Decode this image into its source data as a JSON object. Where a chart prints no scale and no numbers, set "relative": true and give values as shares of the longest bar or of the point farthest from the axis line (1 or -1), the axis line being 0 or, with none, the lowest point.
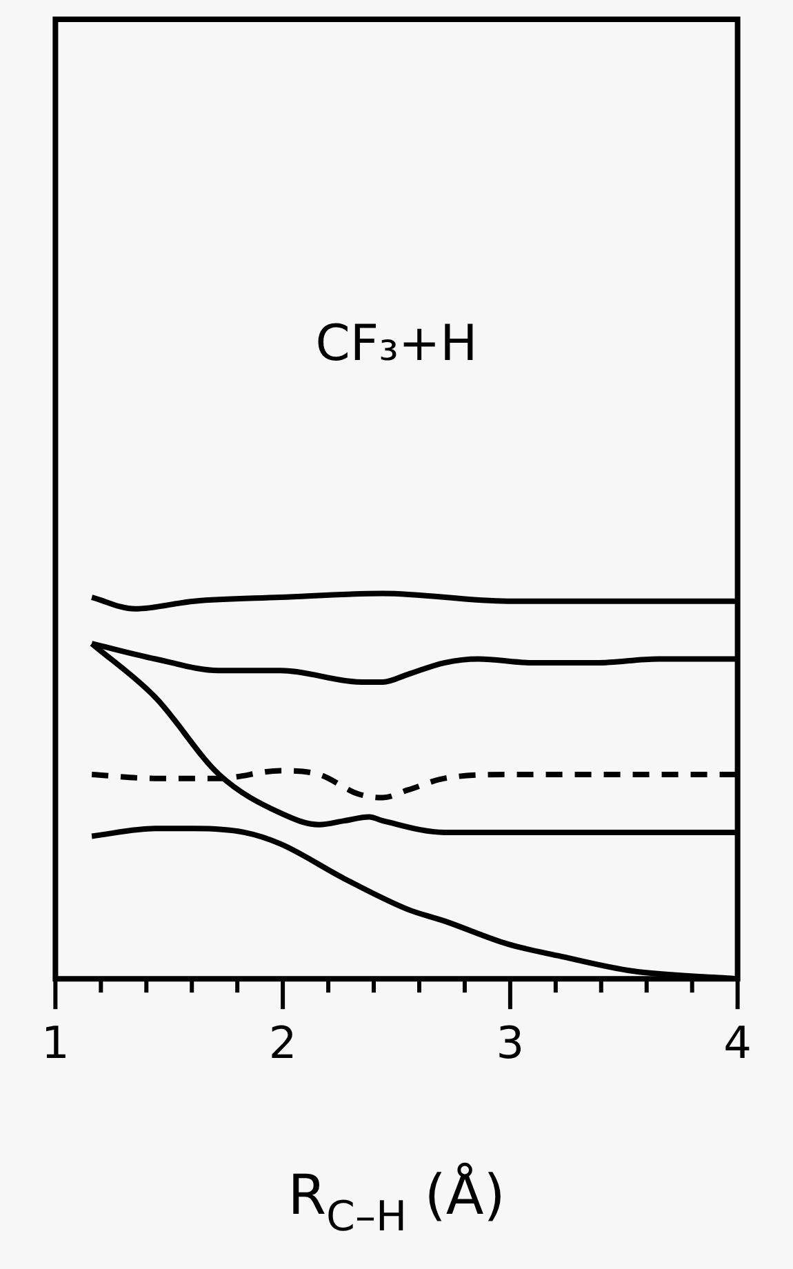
{
  "chart_data": {
    "type": "line",
    "relative": true,
    "xlabel": "R$_{C–H}$ (Å)",
    "annotations": [
      "CF₃+H"
    ],
    "xlim": [
      1,
      4
    ],
    "xticks": [
      1,
      {
        "value": 1.2,
        "label": null
      },
      {
        "value": 1.4,
        "label": null
      },
      {
        "value": 1.6,
        "label": null
      },
      {
        "value": 1.8,
        "label": null
      },
      2,
      {
        "value": 2.2,
        "label": null
      },
      {
        "value": 2.4,
        "label": null
      },
      {
        "value": 2.6,
        "label": null
      },
      {
        "value": 2.8,
        "label": null
      },
      3,
      {
        "value": 3.2,
        "label": null
      },
      {
        "value": 3.4,
        "label": null
      },
      {
        "value": 3.6,
        "label": null
      },
      {
        "value": 3.8,
        "label": null
      },
      4
    ],
    "tick_labels": "x",
    "grid": false,
    "legend": false,
    "marker": "none",
    "line_style": "solid",
    "series": [
      {
        "color": "#000000",
        "x": [
          1.16,
          1.35,
          1.61,
          1.99,
          2.44,
          2.99,
          4.0
        ],
        "values": [
          0.99,
          0.96,
          0.98,
          0.99,
          1.0,
          0.98,
          0.98
        ]
      },
      {
        "color": "#000000",
        "x": [
          1.16,
          1.44,
          1.72,
          1.99,
          2.35,
          2.44,
          2.55,
          2.71,
          2.86,
          3.1,
          3.38,
          3.65,
          4.0
        ],
        "values": [
          0.87,
          0.83,
          0.8,
          0.8,
          0.77,
          0.77,
          0.79,
          0.82,
          0.83,
          0.82,
          0.82,
          0.83,
          0.83
        ]
      },
      {
        "color": "#000000",
        "x": [
          1.16,
          1.44,
          1.72,
          1.99,
          2.16,
          2.27,
          2.38,
          2.44,
          2.71,
          2.99,
          4.0
        ],
        "values": [
          0.87,
          0.73,
          0.53,
          0.43,
          0.4,
          0.41,
          0.42,
          0.41,
          0.38,
          0.38,
          0.38
        ]
      },
      {
        "color": "#000000",
        "line_style": "dashed",
        "x": [
          1.16,
          1.44,
          1.72,
          1.99,
          2.16,
          2.33,
          2.44,
          2.55,
          2.71,
          2.99,
          4.0
        ],
        "values": [
          0.53,
          0.52,
          0.52,
          0.54,
          0.53,
          0.48,
          0.47,
          0.49,
          0.52,
          0.53,
          0.53
        ]
      },
      {
        "color": "#000000",
        "x": [
          1.16,
          1.44,
          1.61,
          1.83,
          1.99,
          2.27,
          2.55,
          2.71,
          2.99,
          3.21,
          3.54,
          4.0
        ],
        "values": [
          0.37,
          0.39,
          0.39,
          0.38,
          0.35,
          0.26,
          0.18,
          0.15,
          0.09,
          0.06,
          0.02,
          0.0
        ]
      }
    ]
  }
}
